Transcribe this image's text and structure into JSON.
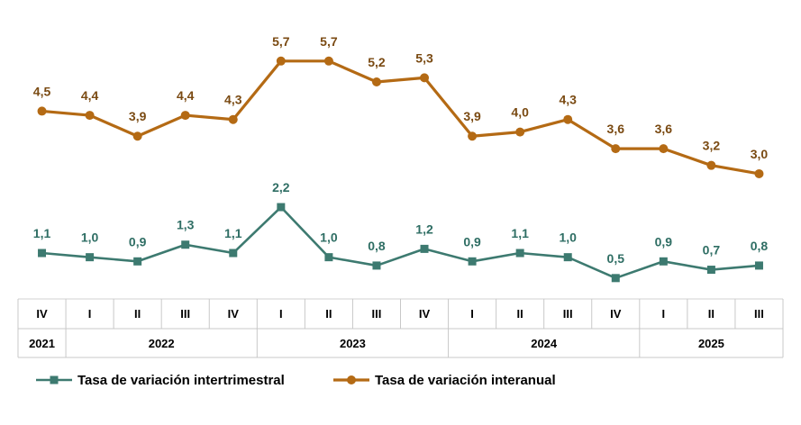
{
  "chart_data": {
    "type": "line",
    "title": "",
    "xlabel": "",
    "ylabel": "",
    "ylim": [
      0,
      6.3
    ],
    "grid": false,
    "legend_position": "bottom",
    "categories": [
      {
        "quarter": "IV",
        "year": "2021"
      },
      {
        "quarter": "I",
        "year": "2022"
      },
      {
        "quarter": "II",
        "year": "2022"
      },
      {
        "quarter": "III",
        "year": "2022"
      },
      {
        "quarter": "IV",
        "year": "2022"
      },
      {
        "quarter": "I",
        "year": "2023"
      },
      {
        "quarter": "II",
        "year": "2023"
      },
      {
        "quarter": "III",
        "year": "2023"
      },
      {
        "quarter": "IV",
        "year": "2023"
      },
      {
        "quarter": "I",
        "year": "2024"
      },
      {
        "quarter": "II",
        "year": "2024"
      },
      {
        "quarter": "III",
        "year": "2024"
      },
      {
        "quarter": "IV",
        "year": "2024"
      },
      {
        "quarter": "I",
        "year": "2025"
      },
      {
        "quarter": "II",
        "year": "2025"
      },
      {
        "quarter": "III",
        "year": "2025"
      }
    ],
    "years": [
      {
        "label": "2021",
        "span": 1
      },
      {
        "label": "2022",
        "span": 4
      },
      {
        "label": "2023",
        "span": 4
      },
      {
        "label": "2024",
        "span": 4
      },
      {
        "label": "2025",
        "span": 3
      }
    ],
    "series": [
      {
        "name": "Tasa de variación interanual",
        "color": "#b46a14",
        "marker": "circle",
        "values": [
          4.5,
          4.4,
          3.9,
          4.4,
          4.3,
          5.7,
          5.7,
          5.2,
          5.3,
          3.9,
          4.0,
          4.3,
          3.6,
          3.6,
          3.2,
          3.0
        ],
        "labels": [
          "4,5",
          "4,4",
          "3,9",
          "4,4",
          "4,3",
          "5,7",
          "5,7",
          "5,2",
          "5,3",
          "3,9",
          "4,0",
          "4,3",
          "3,6",
          "3,6",
          "3,2",
          "3,0"
        ]
      },
      {
        "name": "Tasa de variación intertrimestral",
        "color": "#3d7a70",
        "marker": "square",
        "values": [
          1.1,
          1.0,
          0.9,
          1.3,
          1.1,
          2.2,
          1.0,
          0.8,
          1.2,
          0.9,
          1.1,
          1.0,
          0.5,
          0.9,
          0.7,
          0.8
        ],
        "labels": [
          "1,1",
          "1,0",
          "0,9",
          "1,3",
          "1,1",
          "2,2",
          "1,0",
          "0,8",
          "1,2",
          "0,9",
          "1,1",
          "1,0",
          "0,5",
          "0,9",
          "0,7",
          "0,8"
        ]
      }
    ],
    "legend": [
      {
        "series": 1,
        "label": "Tasa de variación intertrimestral"
      },
      {
        "series": 0,
        "label": "Tasa de variación interanual"
      }
    ]
  }
}
